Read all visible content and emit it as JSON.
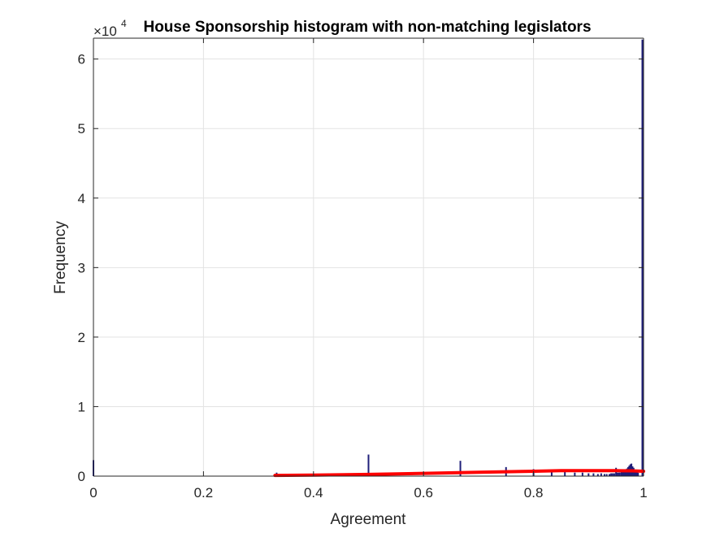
{
  "chart_data": {
    "type": "bar",
    "title": "House Sponsorship histogram with non-matching legislators",
    "xlabel": "Agreement",
    "ylabel": "Frequency",
    "y_exponent_label": "×10",
    "y_exponent_power": "4",
    "xlim": [
      0,
      1
    ],
    "ylim": [
      0,
      63000
    ],
    "x_ticks": [
      0,
      0.2,
      0.4,
      0.6,
      0.8,
      1
    ],
    "x_tick_labels": [
      "0",
      "0.2",
      "0.4",
      "0.6",
      "0.8",
      "1"
    ],
    "y_ticks": [
      0,
      10000,
      20000,
      30000,
      40000,
      50000,
      60000
    ],
    "y_tick_labels": [
      "0",
      "1",
      "2",
      "3",
      "4",
      "5",
      "6"
    ],
    "grid": true,
    "colors": {
      "bars": "#1f1f7a",
      "fit": "#ff0000",
      "grid": "#e3e3e3",
      "axis": "#262626"
    },
    "series": [
      {
        "type": "bar",
        "x": [
          0.0,
          0.333,
          0.5,
          0.667,
          0.75,
          0.8,
          0.833,
          0.857,
          0.875,
          0.889,
          0.9,
          0.909,
          0.917,
          0.923,
          0.929,
          0.933,
          0.938,
          0.941,
          0.944,
          0.947,
          0.95,
          0.952,
          0.955,
          0.957,
          0.96,
          0.962,
          0.964,
          0.966,
          0.968,
          0.97,
          0.972,
          0.974,
          0.976,
          0.978,
          0.98,
          0.982,
          0.984,
          0.986,
          0.988,
          0.99,
          1.0
        ],
        "values": [
          2300,
          500,
          3100,
          2200,
          1300,
          1000,
          800,
          600,
          500,
          500,
          400,
          400,
          300,
          400,
          300,
          300,
          300,
          400,
          400,
          400,
          1200,
          500,
          500,
          500,
          800,
          700,
          700,
          900,
          1000,
          1100,
          1300,
          1500,
          1700,
          1800,
          1400,
          1200,
          900,
          800,
          700,
          500,
          62800
        ]
      },
      {
        "type": "line",
        "x": [
          0.33,
          0.4,
          0.5,
          0.6,
          0.7,
          0.8,
          0.85,
          0.9,
          0.95,
          0.98,
          1.0
        ],
        "values": [
          100,
          150,
          250,
          400,
          550,
          700,
          780,
          800,
          780,
          760,
          700
        ]
      }
    ]
  }
}
